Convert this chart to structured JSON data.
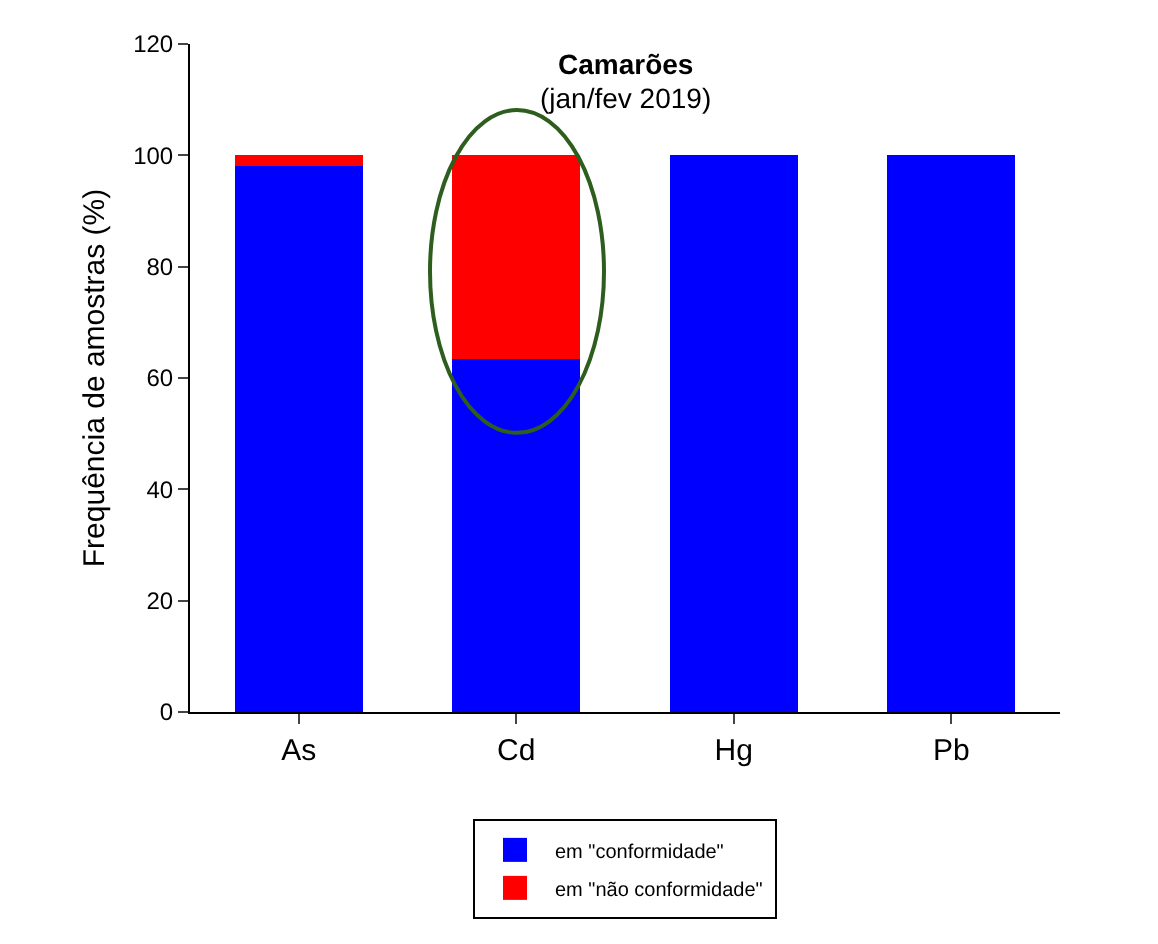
{
  "chart_data": {
    "type": "bar",
    "title": "Camarões",
    "subtitle": "(jan/fev 2019)",
    "ylabel": "Frequência de amostras (%)",
    "categories": [
      "As",
      "Cd",
      "Hg",
      "Pb"
    ],
    "stacked": true,
    "series": [
      {
        "name": "em \"conformidade\"",
        "color": "#0000ff",
        "values": [
          98,
          63.5,
          100,
          100
        ]
      },
      {
        "name": "em \"não conformidade\"",
        "color": "#ff0000",
        "values": [
          2,
          36.5,
          0,
          0
        ]
      }
    ],
    "ylim": [
      0,
      120
    ],
    "yticks": [
      0,
      20,
      40,
      60,
      80,
      100,
      120
    ],
    "grid": false,
    "legend": "bottom"
  }
}
